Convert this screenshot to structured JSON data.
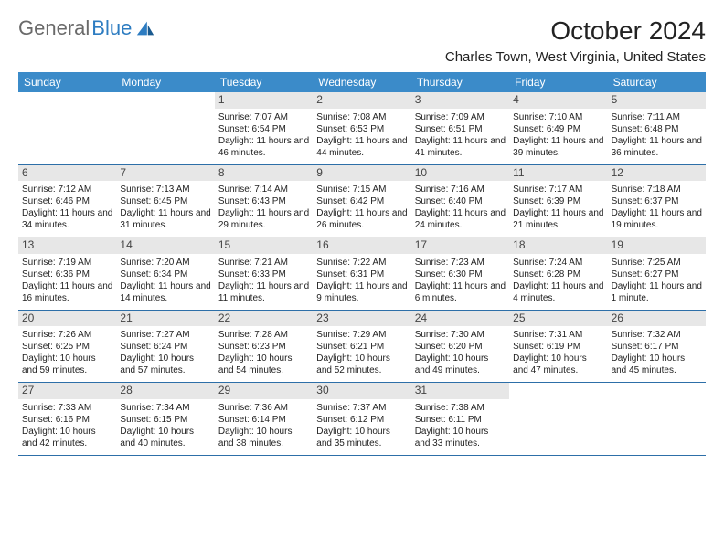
{
  "brand": {
    "part1": "General",
    "part2": "Blue"
  },
  "title": "October 2024",
  "location": "Charles Town, West Virginia, United States",
  "colors": {
    "header_bg": "#3b8bc9",
    "header_text": "#ffffff",
    "week_border": "#2d6fa8",
    "daynum_bg": "#e7e7e7",
    "brand_gray": "#6a6a6a",
    "brand_blue": "#2d7cc1"
  },
  "day_names": [
    "Sunday",
    "Monday",
    "Tuesday",
    "Wednesday",
    "Thursday",
    "Friday",
    "Saturday"
  ],
  "weeks": [
    [
      null,
      null,
      {
        "n": "1",
        "sunrise": "7:07 AM",
        "sunset": "6:54 PM",
        "daylight": "11 hours and 46 minutes."
      },
      {
        "n": "2",
        "sunrise": "7:08 AM",
        "sunset": "6:53 PM",
        "daylight": "11 hours and 44 minutes."
      },
      {
        "n": "3",
        "sunrise": "7:09 AM",
        "sunset": "6:51 PM",
        "daylight": "11 hours and 41 minutes."
      },
      {
        "n": "4",
        "sunrise": "7:10 AM",
        "sunset": "6:49 PM",
        "daylight": "11 hours and 39 minutes."
      },
      {
        "n": "5",
        "sunrise": "7:11 AM",
        "sunset": "6:48 PM",
        "daylight": "11 hours and 36 minutes."
      }
    ],
    [
      {
        "n": "6",
        "sunrise": "7:12 AM",
        "sunset": "6:46 PM",
        "daylight": "11 hours and 34 minutes."
      },
      {
        "n": "7",
        "sunrise": "7:13 AM",
        "sunset": "6:45 PM",
        "daylight": "11 hours and 31 minutes."
      },
      {
        "n": "8",
        "sunrise": "7:14 AM",
        "sunset": "6:43 PM",
        "daylight": "11 hours and 29 minutes."
      },
      {
        "n": "9",
        "sunrise": "7:15 AM",
        "sunset": "6:42 PM",
        "daylight": "11 hours and 26 minutes."
      },
      {
        "n": "10",
        "sunrise": "7:16 AM",
        "sunset": "6:40 PM",
        "daylight": "11 hours and 24 minutes."
      },
      {
        "n": "11",
        "sunrise": "7:17 AM",
        "sunset": "6:39 PM",
        "daylight": "11 hours and 21 minutes."
      },
      {
        "n": "12",
        "sunrise": "7:18 AM",
        "sunset": "6:37 PM",
        "daylight": "11 hours and 19 minutes."
      }
    ],
    [
      {
        "n": "13",
        "sunrise": "7:19 AM",
        "sunset": "6:36 PM",
        "daylight": "11 hours and 16 minutes."
      },
      {
        "n": "14",
        "sunrise": "7:20 AM",
        "sunset": "6:34 PM",
        "daylight": "11 hours and 14 minutes."
      },
      {
        "n": "15",
        "sunrise": "7:21 AM",
        "sunset": "6:33 PM",
        "daylight": "11 hours and 11 minutes."
      },
      {
        "n": "16",
        "sunrise": "7:22 AM",
        "sunset": "6:31 PM",
        "daylight": "11 hours and 9 minutes."
      },
      {
        "n": "17",
        "sunrise": "7:23 AM",
        "sunset": "6:30 PM",
        "daylight": "11 hours and 6 minutes."
      },
      {
        "n": "18",
        "sunrise": "7:24 AM",
        "sunset": "6:28 PM",
        "daylight": "11 hours and 4 minutes."
      },
      {
        "n": "19",
        "sunrise": "7:25 AM",
        "sunset": "6:27 PM",
        "daylight": "11 hours and 1 minute."
      }
    ],
    [
      {
        "n": "20",
        "sunrise": "7:26 AM",
        "sunset": "6:25 PM",
        "daylight": "10 hours and 59 minutes."
      },
      {
        "n": "21",
        "sunrise": "7:27 AM",
        "sunset": "6:24 PM",
        "daylight": "10 hours and 57 minutes."
      },
      {
        "n": "22",
        "sunrise": "7:28 AM",
        "sunset": "6:23 PM",
        "daylight": "10 hours and 54 minutes."
      },
      {
        "n": "23",
        "sunrise": "7:29 AM",
        "sunset": "6:21 PM",
        "daylight": "10 hours and 52 minutes."
      },
      {
        "n": "24",
        "sunrise": "7:30 AM",
        "sunset": "6:20 PM",
        "daylight": "10 hours and 49 minutes."
      },
      {
        "n": "25",
        "sunrise": "7:31 AM",
        "sunset": "6:19 PM",
        "daylight": "10 hours and 47 minutes."
      },
      {
        "n": "26",
        "sunrise": "7:32 AM",
        "sunset": "6:17 PM",
        "daylight": "10 hours and 45 minutes."
      }
    ],
    [
      {
        "n": "27",
        "sunrise": "7:33 AM",
        "sunset": "6:16 PM",
        "daylight": "10 hours and 42 minutes."
      },
      {
        "n": "28",
        "sunrise": "7:34 AM",
        "sunset": "6:15 PM",
        "daylight": "10 hours and 40 minutes."
      },
      {
        "n": "29",
        "sunrise": "7:36 AM",
        "sunset": "6:14 PM",
        "daylight": "10 hours and 38 minutes."
      },
      {
        "n": "30",
        "sunrise": "7:37 AM",
        "sunset": "6:12 PM",
        "daylight": "10 hours and 35 minutes."
      },
      {
        "n": "31",
        "sunrise": "7:38 AM",
        "sunset": "6:11 PM",
        "daylight": "10 hours and 33 minutes."
      },
      null,
      null
    ]
  ],
  "labels": {
    "sunrise": "Sunrise:",
    "sunset": "Sunset:",
    "daylight": "Daylight:"
  }
}
